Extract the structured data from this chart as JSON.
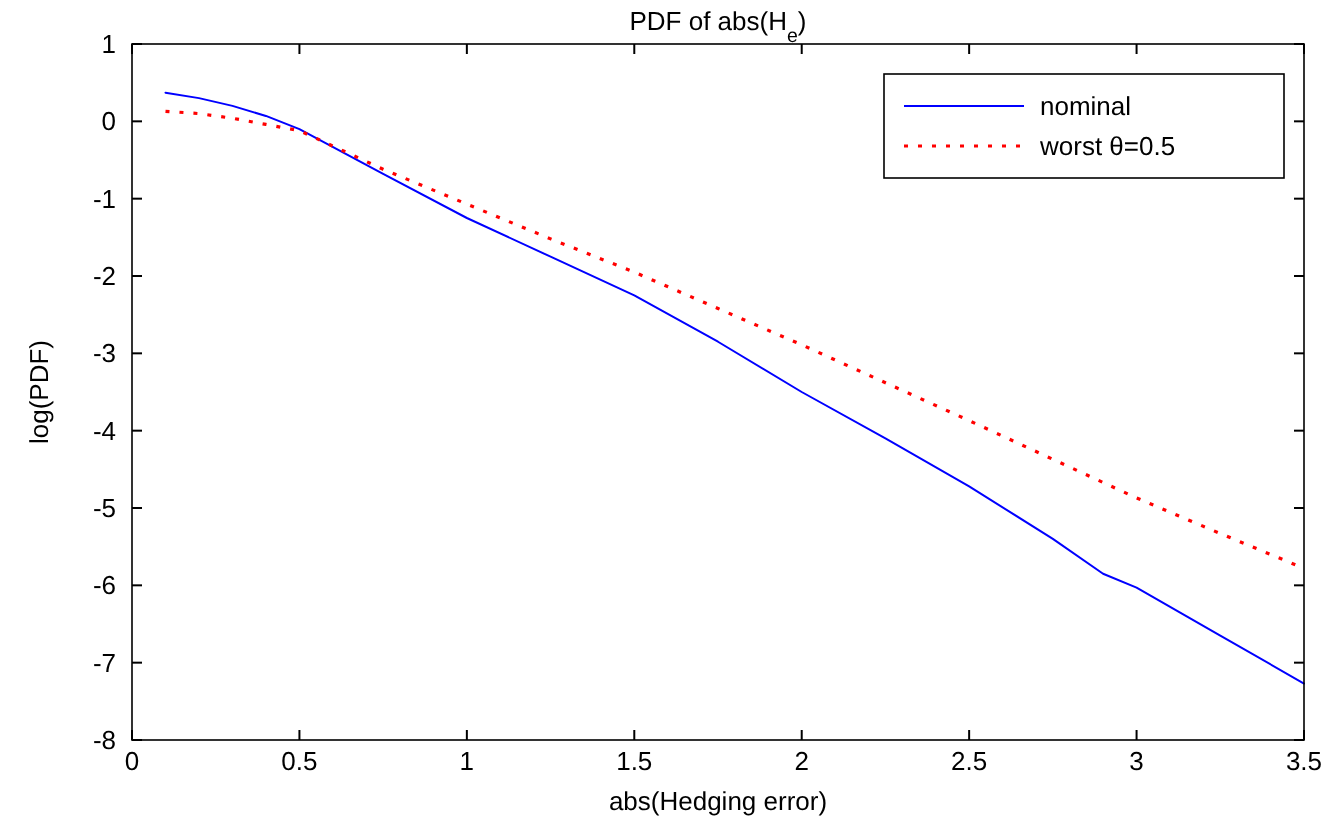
{
  "chart_data": {
    "type": "line",
    "title": "PDF of abs(H$_{e}$)",
    "xlabel": "abs(Hedging error)",
    "ylabel": "log(PDF)",
    "xlim": [
      0,
      3.5
    ],
    "ylim": [
      -8,
      1
    ],
    "xticks": [
      0,
      0.5,
      1,
      1.5,
      2,
      2.5,
      3,
      3.5
    ],
    "yticks": [
      -8,
      -7,
      -6,
      -5,
      -4,
      -3,
      -2,
      -1,
      0,
      1
    ],
    "grid": false,
    "legend": "top right",
    "series": [
      {
        "name": "nominal",
        "color": "#0000ff",
        "line_style": "solid",
        "x": [
          0.1,
          0.2,
          0.3,
          0.4,
          0.5,
          0.75,
          1,
          1.25,
          1.5,
          1.75,
          2,
          2.25,
          2.5,
          2.75,
          2.9,
          3,
          3.25,
          3.5
        ],
        "values": [
          0.37,
          0.3,
          0.2,
          0.07,
          -0.1,
          -0.68,
          -1.25,
          -1.75,
          -2.25,
          -2.85,
          -3.5,
          -4.1,
          -4.72,
          -5.4,
          -5.85,
          -6.03,
          -6.65,
          -7.27
        ]
      },
      {
        "name": "worst θ=0.5",
        "color": "#ff0000",
        "line_style": "dotted",
        "x": [
          0.1,
          0.2,
          0.3,
          0.4,
          0.5,
          0.75,
          1,
          1.25,
          1.5,
          1.75,
          2,
          2.25,
          2.5,
          2.75,
          3,
          3.25,
          3.5
        ],
        "values": [
          0.13,
          0.1,
          0.04,
          -0.04,
          -0.12,
          -0.62,
          -1.07,
          -1.52,
          -1.95,
          -2.42,
          -2.89,
          -3.38,
          -3.87,
          -4.37,
          -4.87,
          -5.33,
          -5.78
        ]
      }
    ]
  }
}
